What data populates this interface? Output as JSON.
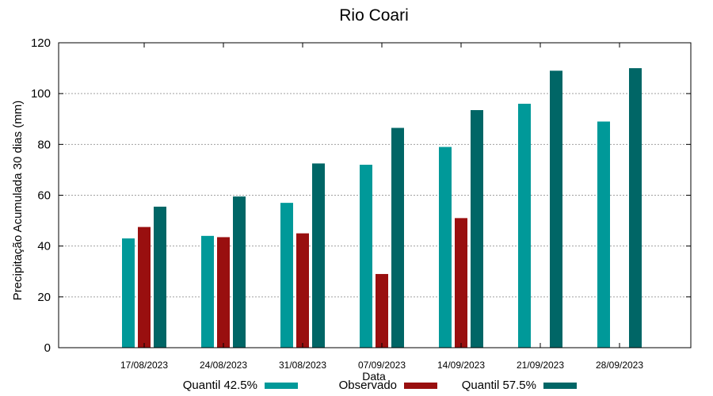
{
  "chart_data": {
    "type": "bar",
    "title": "Rio Coari",
    "xlabel": "Data",
    "ylabel": "Precipitação Acumulada 30 dias (mm)",
    "ylim": [
      0,
      120
    ],
    "yticks": [
      0,
      20,
      40,
      60,
      80,
      100,
      120
    ],
    "grid": true,
    "legend_position": "bottom",
    "categories": [
      "17/08/2023",
      "24/08/2023",
      "31/08/2023",
      "07/09/2023",
      "14/09/2023",
      "21/09/2023",
      "28/09/2023"
    ],
    "series": [
      {
        "name": "Quantil 42.5%",
        "color": "#009999",
        "values": [
          43,
          44,
          57,
          72,
          79,
          96,
          89
        ]
      },
      {
        "name": "Observado",
        "color": "#990f0f",
        "values": [
          47.5,
          43.5,
          45,
          29,
          51,
          null,
          null
        ]
      },
      {
        "name": "Quantil 57.5%",
        "color": "#006666",
        "values": [
          55.5,
          59.5,
          72.5,
          86.5,
          93.5,
          109,
          110
        ]
      }
    ]
  }
}
